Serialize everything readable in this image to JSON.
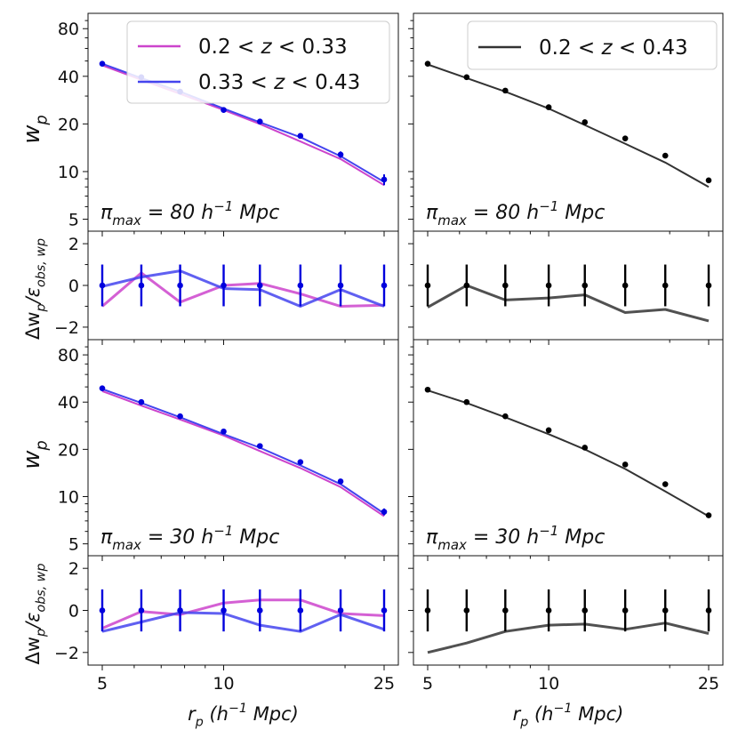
{
  "chart_data": {
    "type": "line",
    "xlabel_parts": [
      "r",
      "p",
      " (h",
      "−1",
      " Mpc)"
    ],
    "ylabel_top": [
      "w",
      "p"
    ],
    "ylabel_bottom": [
      "Δw",
      "p",
      "/ε",
      "obs, w",
      "p"
    ],
    "x_ticks": [
      "5",
      "10",
      "25"
    ],
    "y_ticks_top": [
      "5",
      "10",
      "20",
      "40",
      "80"
    ],
    "y_ticks_bottom": [
      "−2",
      "0",
      "2"
    ],
    "x_points": [
      5,
      6.25,
      7.8,
      10,
      12.3,
      15.5,
      19.5,
      25
    ],
    "colors": {
      "magenta": "#cc44cc",
      "blue": "#4444ee",
      "black": "#333333",
      "points_blue": "#0000dd",
      "points_black": "#000000"
    },
    "left_legend": [
      {
        "id": "mag",
        "parts": [
          "0.2 < ",
          "z",
          " < 0.33"
        ]
      },
      {
        "id": "blu",
        "parts": [
          "0.33 < ",
          "z",
          " < 0.43"
        ]
      }
    ],
    "right_legend": [
      {
        "id": "blk",
        "parts": [
          "0.2 < ",
          "z",
          " < 0.43"
        ]
      }
    ],
    "panels": [
      {
        "id": "wp-pi80-split",
        "scale": "log",
        "ylim": [
          4.2,
          100
        ],
        "annotation": [
          "π",
          "max",
          " = 80 h",
          "−1",
          " Mpc"
        ],
        "series": [
          {
            "name": "0.2 < z < 0.33",
            "color": "#cc44cc",
            "values": [
              47,
              38,
              31,
              24.5,
              20,
              15.5,
              12,
              8.2
            ]
          },
          {
            "name": "0.33 < z < 0.43",
            "color": "#4444ee",
            "values": [
              48,
              39,
              32,
              25,
              20.5,
              16.5,
              12.5,
              8.6
            ]
          }
        ],
        "points": {
          "color": "#0000dd",
          "values": [
            48,
            39.5,
            32,
            24.5,
            20.7,
            16.8,
            12.8,
            8.9
          ],
          "errors": [
            0.8,
            0.6,
            0.5,
            0.5,
            0.6,
            0.5,
            0.6,
            0.7
          ]
        }
      },
      {
        "id": "wp-pi80-combined",
        "scale": "log",
        "ylim": [
          4.2,
          100
        ],
        "annotation": [
          "π",
          "max",
          " = 80 h",
          "−1",
          " Mpc"
        ],
        "series": [
          {
            "name": "0.2 < z < 0.43",
            "color": "#333333",
            "values": [
              47.5,
              39,
              32,
              25,
              19.7,
              15,
              11.4,
              8.0
            ]
          }
        ],
        "points": {
          "color": "#000000",
          "values": [
            48,
            39.5,
            32.5,
            25.5,
            20.5,
            16.2,
            12.6,
            8.8
          ],
          "errors": [
            0,
            0,
            0,
            0,
            0,
            0,
            0,
            0
          ]
        }
      },
      {
        "id": "res-pi80-split",
        "scale": "linear",
        "ylim": [
          -2.6,
          2.6
        ],
        "series": [
          {
            "name": "0.2 < z < 0.33",
            "color": "#cc44cc",
            "values": [
              -1.0,
              0.6,
              -0.8,
              0.0,
              0.1,
              -0.4,
              -1.0,
              -0.95
            ]
          },
          {
            "name": "0.33 < z < 0.43",
            "color": "#4444ee",
            "values": [
              -0.05,
              0.4,
              0.7,
              -0.15,
              -0.2,
              -1.0,
              -0.2,
              -1.0
            ]
          }
        ],
        "points": {
          "color": "#0000dd",
          "values": [
            0,
            0,
            0,
            0,
            0,
            0,
            0,
            0
          ],
          "errors": [
            1,
            1,
            1,
            1,
            1,
            1,
            1,
            1
          ]
        }
      },
      {
        "id": "res-pi80-combined",
        "scale": "linear",
        "ylim": [
          -2.6,
          2.6
        ],
        "series": [
          {
            "name": "0.2 < z < 0.43",
            "color": "#333333",
            "values": [
              -1.05,
              0.0,
              -0.7,
              -0.6,
              -0.45,
              -1.3,
              -1.15,
              -1.7
            ]
          }
        ],
        "points": {
          "color": "#000000",
          "values": [
            0,
            0,
            0,
            0,
            0,
            0,
            0,
            0
          ],
          "errors": [
            1,
            1,
            1,
            1,
            1,
            1,
            1,
            1
          ]
        }
      },
      {
        "id": "wp-pi30-split",
        "scale": "log",
        "ylim": [
          4.2,
          100
        ],
        "annotation": [
          "π",
          "max",
          " = 30 h",
          "−1",
          " Mpc"
        ],
        "series": [
          {
            "name": "0.2 < z < 0.33",
            "color": "#cc44cc",
            "values": [
              47,
              38,
              31,
              24.5,
              19.5,
              15.2,
              11.5,
              7.5
            ]
          },
          {
            "name": "0.33 < z < 0.43",
            "color": "#4444ee",
            "values": [
              48.5,
              39.5,
              32,
              25,
              20.5,
              15.8,
              12,
              7.8
            ]
          }
        ],
        "points": {
          "color": "#0000dd",
          "values": [
            49,
            40,
            32.5,
            26,
            21,
            16.6,
            12.5,
            8.0
          ],
          "errors": [
            0.6,
            0.5,
            0.4,
            0.4,
            0.5,
            0.4,
            0.4,
            0.4
          ]
        }
      },
      {
        "id": "wp-pi30-combined",
        "scale": "log",
        "ylim": [
          4.2,
          100
        ],
        "annotation": [
          "π",
          "max",
          " = 30 h",
          "−1",
          " Mpc"
        ],
        "series": [
          {
            "name": "0.2 < z < 0.43",
            "color": "#333333",
            "values": [
              47.5,
              39.5,
              32,
              25,
              20,
              15,
              10.8,
              7.5
            ]
          }
        ],
        "points": {
          "color": "#000000",
          "values": [
            48,
            40,
            32.5,
            26.5,
            20.5,
            16,
            12,
            7.6
          ],
          "errors": [
            0,
            0,
            0,
            0,
            0,
            0,
            0,
            0
          ]
        }
      },
      {
        "id": "res-pi30-split",
        "scale": "linear",
        "ylim": [
          -2.6,
          2.6
        ],
        "series": [
          {
            "name": "0.2 < z < 0.33",
            "color": "#cc44cc",
            "values": [
              -0.85,
              -0.05,
              -0.2,
              0.35,
              0.5,
              0.5,
              -0.15,
              -0.25
            ]
          },
          {
            "name": "0.33 < z < 0.43",
            "color": "#4444ee",
            "values": [
              -1.0,
              -0.55,
              -0.1,
              -0.15,
              -0.7,
              -1.0,
              -0.2,
              -0.9
            ]
          }
        ],
        "points": {
          "color": "#0000dd",
          "values": [
            0,
            0,
            0,
            0,
            0,
            0,
            0,
            0
          ],
          "errors": [
            1,
            1,
            1,
            1,
            1,
            1,
            1,
            1
          ]
        }
      },
      {
        "id": "res-pi30-combined",
        "scale": "linear",
        "ylim": [
          -2.6,
          2.6
        ],
        "series": [
          {
            "name": "0.2 < z < 0.43",
            "color": "#333333",
            "values": [
              -2.0,
              -1.55,
              -1.0,
              -0.7,
              -0.65,
              -0.9,
              -0.6,
              -1.1
            ]
          }
        ],
        "points": {
          "color": "#000000",
          "values": [
            0,
            0,
            0,
            0,
            0,
            0,
            0,
            0
          ],
          "errors": [
            1,
            1,
            1,
            1,
            1,
            1,
            1,
            1
          ]
        }
      }
    ]
  }
}
